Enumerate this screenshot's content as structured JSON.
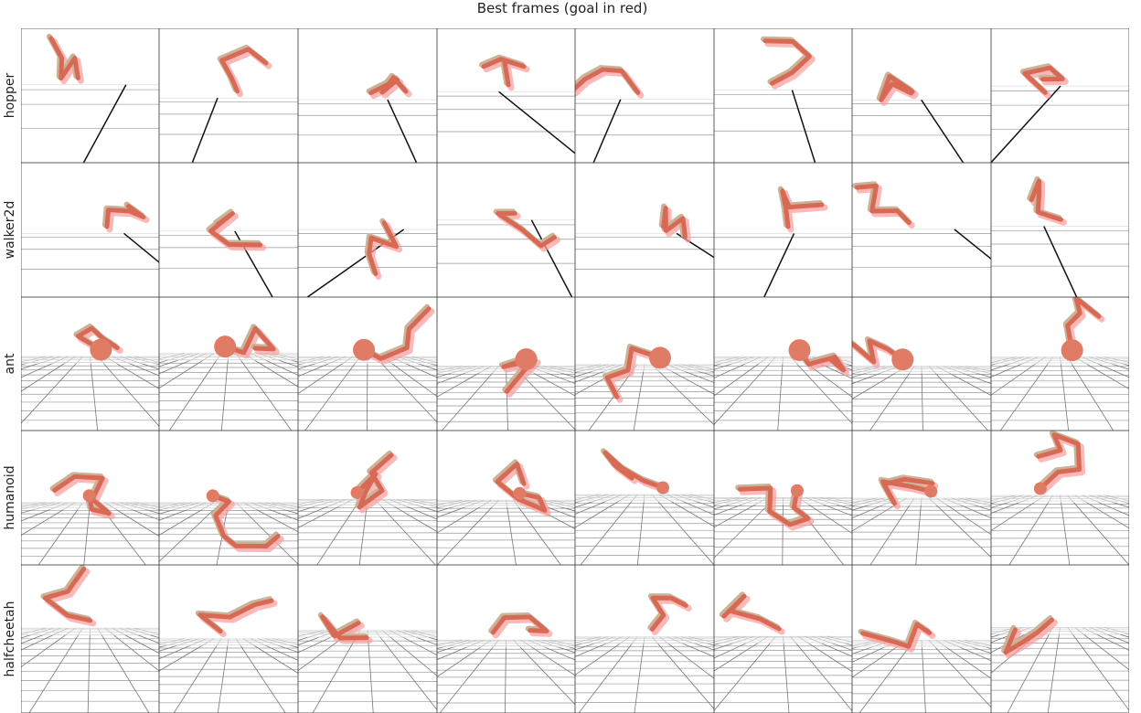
{
  "title": "Best frames (goal in red)",
  "row_labels": [
    "hopper",
    "walker2d",
    "ant",
    "humanoid",
    "halfcheetah"
  ]
}
